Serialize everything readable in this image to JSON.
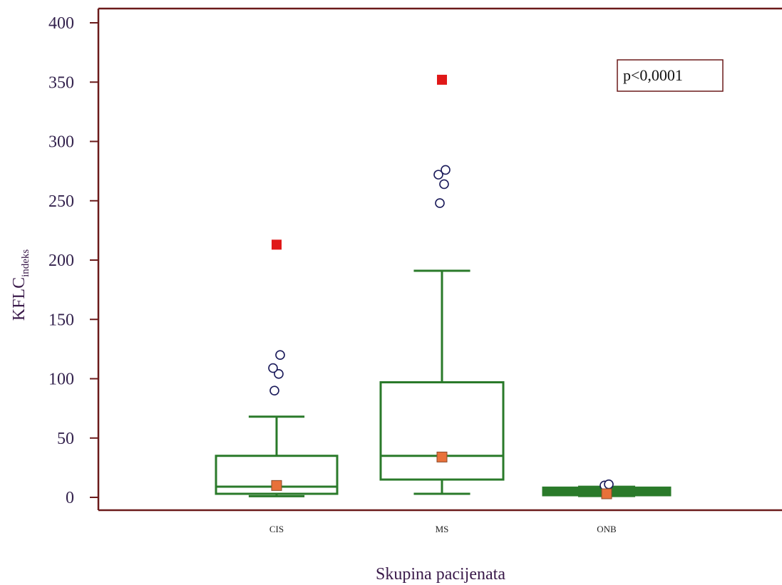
{
  "chart_data": {
    "type": "box",
    "xlabel": "Skupina pacijenata",
    "ylabel": {
      "main": "KFLC",
      "sub": "indeks"
    },
    "ylim": [
      0,
      400
    ],
    "yticks": [
      0,
      50,
      100,
      150,
      200,
      250,
      300,
      350,
      400
    ],
    "ytick_labels": [
      "0",
      "50",
      "100",
      "150",
      "200",
      "250",
      "300",
      "350",
      "400"
    ],
    "annotation": "p<0,0001",
    "annotation_placement": "top-right",
    "grid": false,
    "colors": {
      "axis": "#6b1a1a",
      "box": "#2a7a2a",
      "median_marker": "#e8713a",
      "extreme_marker": "#e01818",
      "outlier": "#1a1a5a",
      "tick_text": "#33224d"
    },
    "categories": [
      "CIS",
      "MS",
      "ONB"
    ],
    "boxes": [
      {
        "label": "CIS",
        "whisker_low": 1,
        "q1": 3,
        "median": 9,
        "q3": 35,
        "whisker_high": 68,
        "marker": 10,
        "outliers": [
          90,
          104,
          109,
          120
        ],
        "extreme": 213
      },
      {
        "label": "MS",
        "whisker_low": 3,
        "q1": 15,
        "median": 35,
        "q3": 97,
        "whisker_high": 191,
        "marker": 34,
        "outliers": [
          248,
          264,
          272,
          276
        ],
        "extreme": 352
      },
      {
        "label": "ONB",
        "whisker_low": 2,
        "q1": 3,
        "median": 5,
        "q3": 7,
        "whisker_high": 8,
        "marker": 3,
        "outliers": [
          10,
          11
        ],
        "extreme": null
      }
    ]
  }
}
